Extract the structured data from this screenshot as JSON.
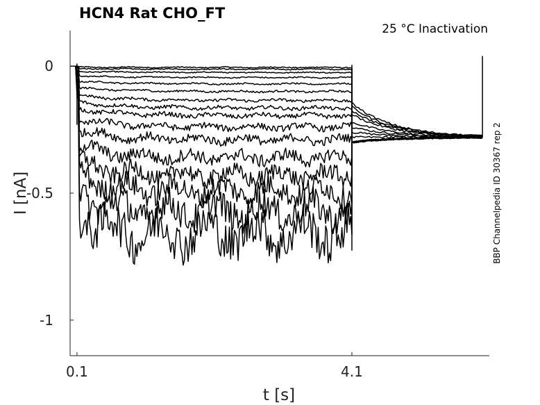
{
  "chart_data": {
    "type": "line",
    "title": "HCN4  Rat  CHO_FT",
    "annotation": "25 °C  Inactivation",
    "side_label": "BBP Channelpedia ID 30367 rep 2",
    "xlabel": "t [s]",
    "ylabel": "I [nA]",
    "xlim": [
      0.0,
      6.1
    ],
    "ylim": [
      -1.14,
      0.14
    ],
    "xticks": [
      0.1,
      4.1
    ],
    "xtick_labels": [
      "0.1",
      "4.1"
    ],
    "yticks": [
      0,
      -0.5,
      -1
    ],
    "ytick_labels": [
      "0",
      "-0.5",
      "-1"
    ],
    "grid": false,
    "step_on": 0.1,
    "step_off": 4.1,
    "tail_end": 6.0,
    "tail_value": -0.28,
    "series": [
      {
        "steady": -0.005,
        "tail_start": -0.28
      },
      {
        "steady": -0.012,
        "tail_start": -0.26
      },
      {
        "steady": -0.025,
        "tail_start": -0.24
      },
      {
        "steady": -0.045,
        "tail_start": -0.22
      },
      {
        "steady": -0.07,
        "tail_start": -0.19
      },
      {
        "steady": -0.1,
        "tail_start": -0.175
      },
      {
        "steady": -0.135,
        "tail_start": -0.16
      },
      {
        "steady": -0.165,
        "tail_start": -0.145
      },
      {
        "steady": -0.195,
        "tail_start": -0.3
      },
      {
        "steady": -0.24,
        "tail_start": -0.3
      },
      {
        "steady": -0.29,
        "tail_start": -0.3
      },
      {
        "steady": -0.36,
        "tail_start": -0.3
      },
      {
        "steady": -0.43,
        "tail_start": -0.3
      },
      {
        "steady": -0.49,
        "tail_start": -0.3
      },
      {
        "steady": -0.57,
        "tail_start": -0.3
      },
      {
        "steady": -0.66,
        "tail_start": -0.3
      }
    ]
  }
}
